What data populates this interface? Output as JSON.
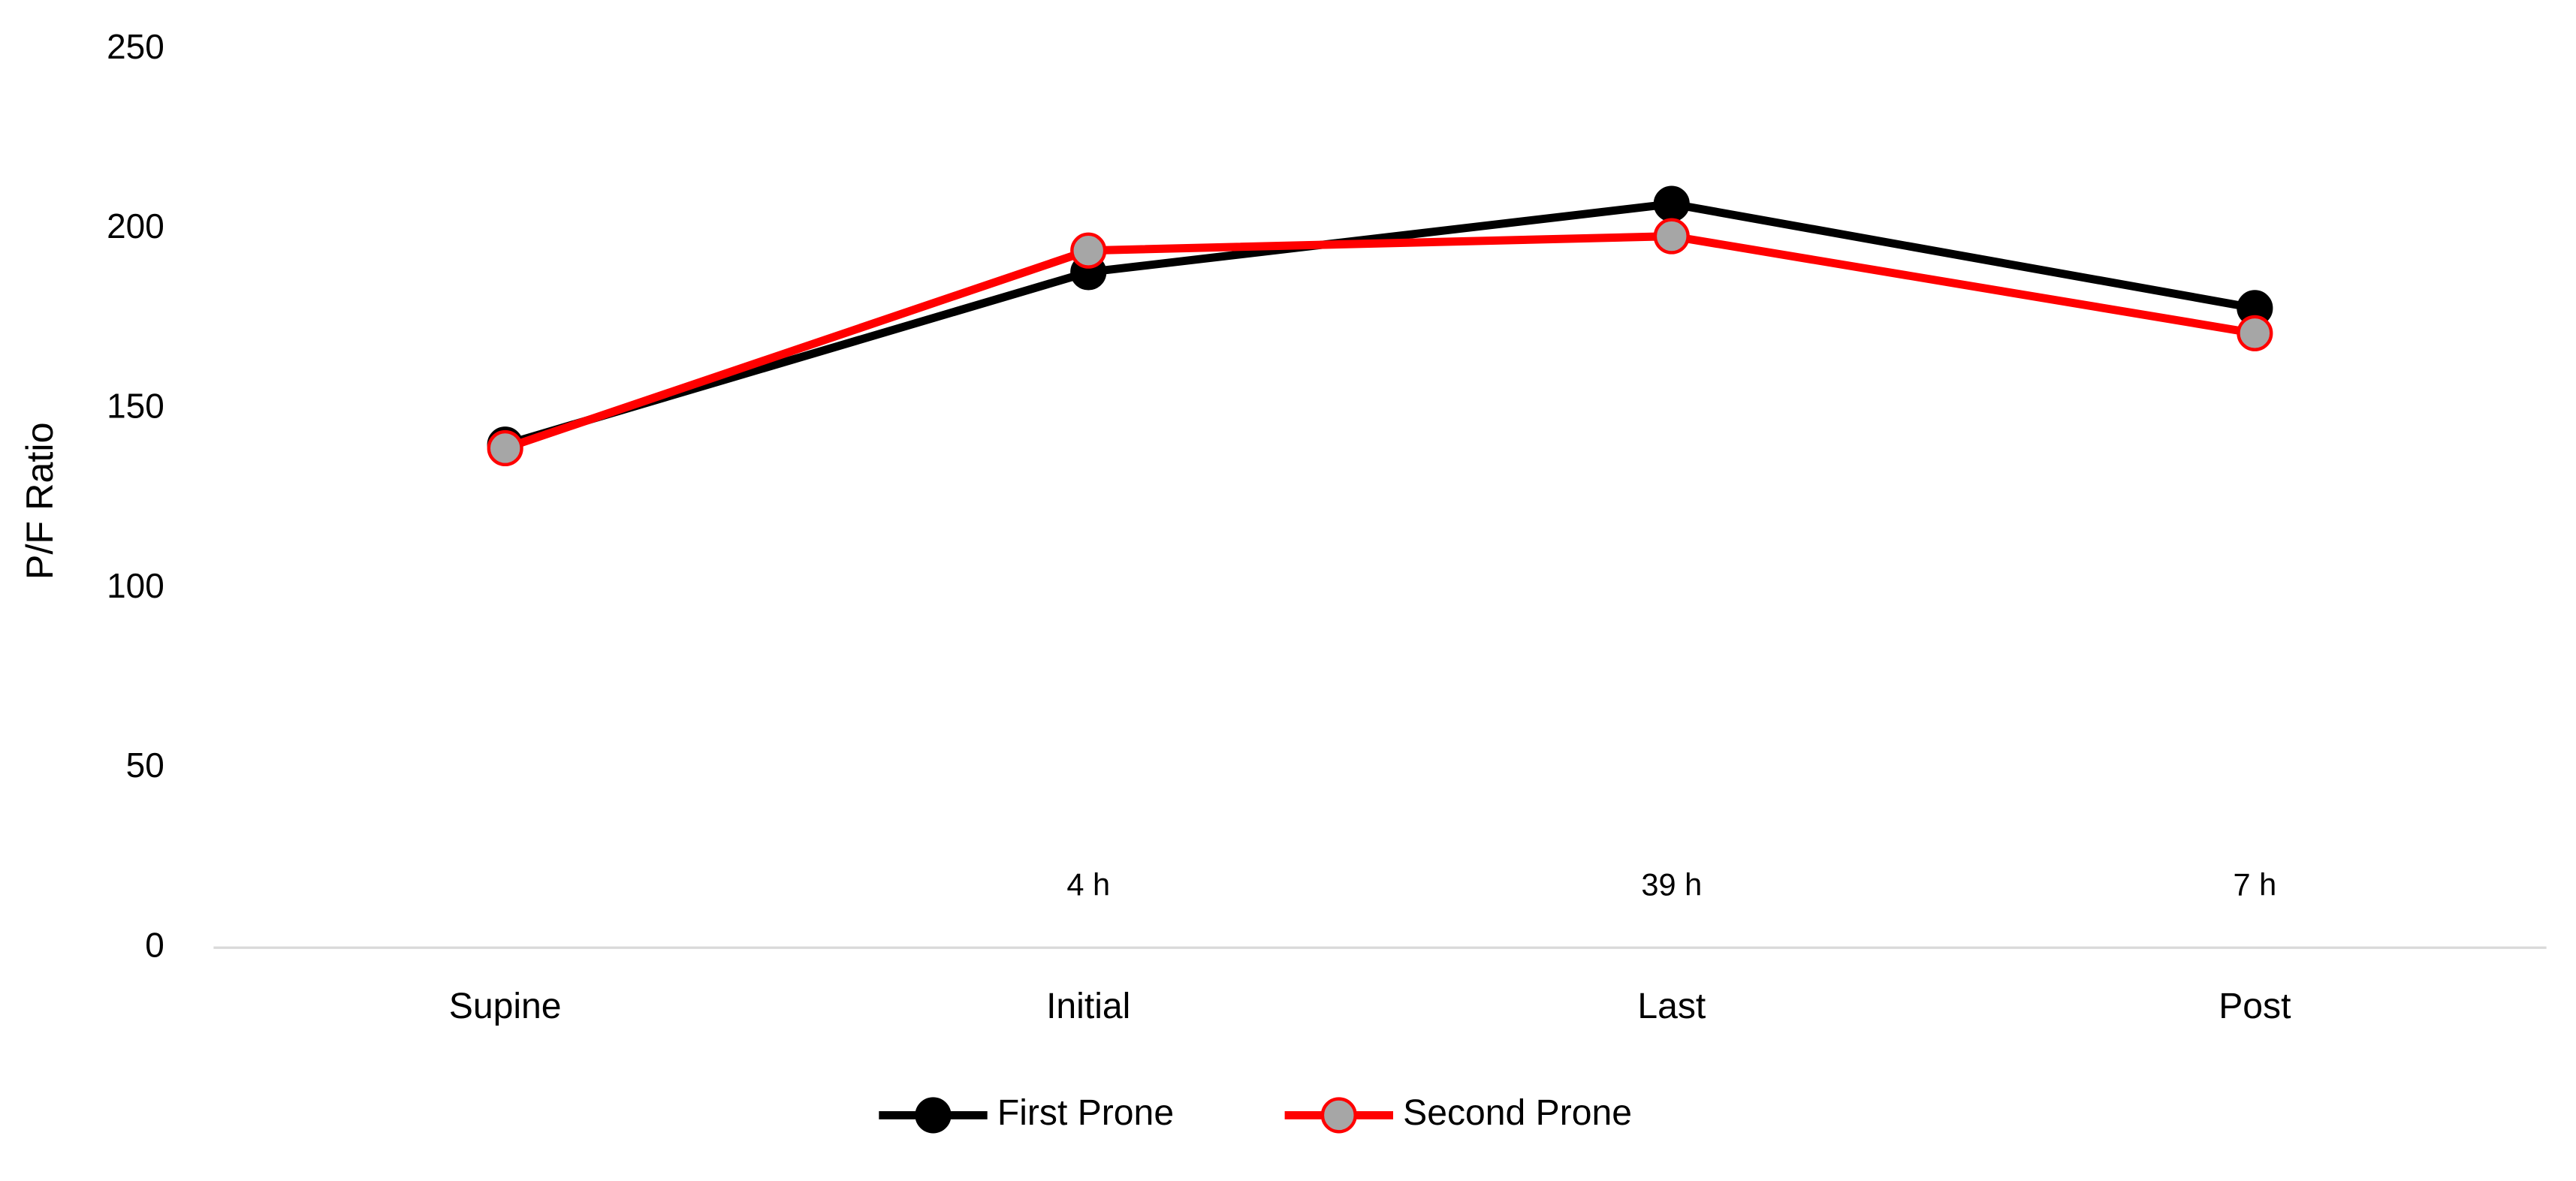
{
  "chart_data": {
    "type": "line",
    "y_label": "P/F Ratio",
    "categories": [
      "Supine",
      "Initial",
      "Last",
      "Post"
    ],
    "series": [
      {
        "name": "First Prone",
        "color": "#000000",
        "marker_color": "#000000",
        "values": [
          140,
          188,
          207,
          178
        ]
      },
      {
        "name": "Second Prone",
        "color": "#ff0000",
        "marker_color": "#a6a6a6",
        "values": [
          139,
          194,
          198,
          171
        ]
      }
    ],
    "annotations": [
      {
        "x": "Initial",
        "text": "4 h"
      },
      {
        "x": "Last",
        "text": "39 h"
      },
      {
        "x": "Post",
        "text": "7 h"
      }
    ],
    "ylim": [
      0,
      250
    ],
    "yticks": [
      0,
      50,
      100,
      150,
      200,
      250
    ],
    "grid": false,
    "legend": "bottom"
  }
}
